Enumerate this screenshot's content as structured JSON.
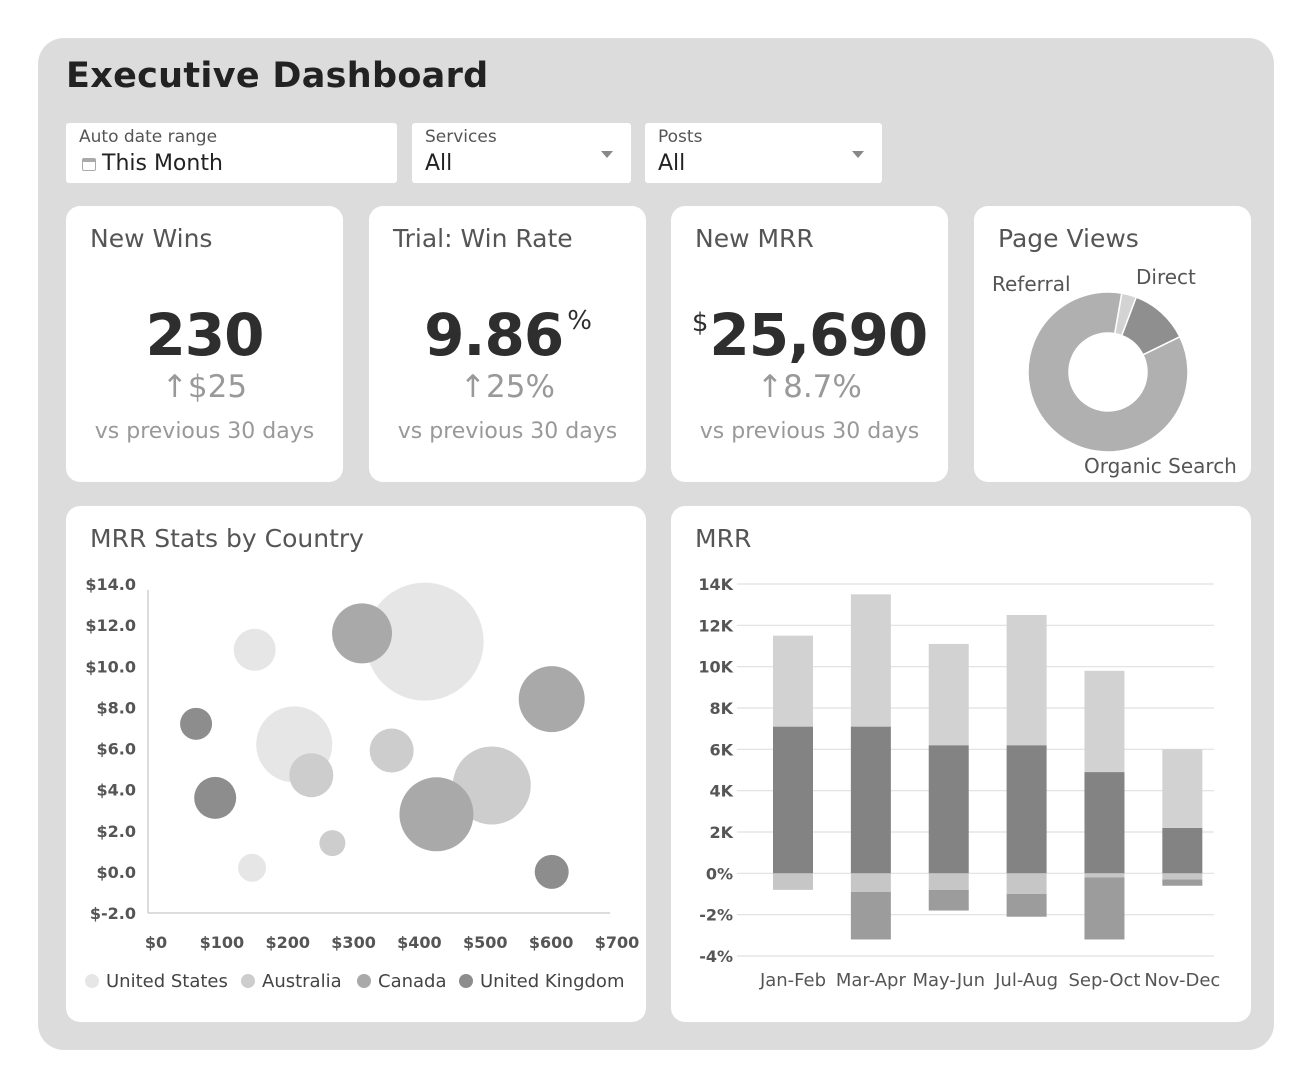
{
  "header": {
    "title": "Executive Dashboard"
  },
  "filters": {
    "date": {
      "label": "Auto date range",
      "value": "This Month"
    },
    "services": {
      "label": "Services",
      "value": "All"
    },
    "posts": {
      "label": "Posts",
      "value": "All"
    }
  },
  "kpis": {
    "new_wins": {
      "title": "New Wins",
      "value": "230",
      "delta": "↑$25",
      "compare": "vs previous 30 days"
    },
    "win_rate": {
      "title": "Trial: Win Rate",
      "value": "9.86",
      "unit": "%",
      "delta": "↑25%",
      "compare": "vs previous 30 days"
    },
    "new_mrr": {
      "title": "New MRR",
      "prefix": "$",
      "value": "25,690",
      "delta": "↑8.7%",
      "compare": "vs previous 30 days"
    }
  },
  "colors": {
    "panel": "#dcdcdc",
    "card": "#ffffff",
    "series_light": "#e4e4e4",
    "series_mid": "#c6c6c6",
    "series_dark": "#a6a6a6",
    "series_darkest": "#8c8c8c"
  },
  "chart_data": [
    {
      "type": "pie",
      "title": "Page Views",
      "donut": true,
      "slices": [
        {
          "label": "Referral",
          "value": 3,
          "color": "#d3d3d3"
        },
        {
          "label": "Direct",
          "value": 12,
          "color": "#8f8f8f"
        },
        {
          "label": "Organic Search",
          "value": 85,
          "color": "#b0b0b0"
        }
      ]
    },
    {
      "type": "scatter",
      "title": "MRR Stats by Country",
      "xlim": [
        0,
        700
      ],
      "ylim": [
        -2,
        14
      ],
      "xticks": [
        "$0",
        "$100",
        "$200",
        "$300",
        "$400",
        "$500",
        "$600",
        "$700"
      ],
      "yticks": [
        "$14.0",
        "$12.0",
        "$10.0",
        "$8.0",
        "$6.0",
        "$4.0",
        "$2.0",
        "$0.0",
        "$-2.0"
      ],
      "legend": "bottom",
      "series": [
        {
          "name": "United States",
          "color": "#e6e6e6",
          "points": [
            {
              "x": 162,
              "y": 10.8,
              "size": 21
            },
            {
              "x": 222,
              "y": 6.2,
              "size": 38
            },
            {
              "x": 420,
              "y": 11.2,
              "size": 59
            },
            {
              "x": 158,
              "y": 0.2,
              "size": 14
            }
          ]
        },
        {
          "name": "Australia",
          "color": "#cdcdcd",
          "points": [
            {
              "x": 248,
              "y": 4.7,
              "size": 22
            },
            {
              "x": 370,
              "y": 5.9,
              "size": 22
            },
            {
              "x": 522,
              "y": 4.2,
              "size": 39
            },
            {
              "x": 280,
              "y": 1.4,
              "size": 13
            }
          ]
        },
        {
          "name": "Canada",
          "color": "#a9a9a9",
          "points": [
            {
              "x": 325,
              "y": 11.6,
              "size": 30
            },
            {
              "x": 438,
              "y": 2.8,
              "size": 37
            },
            {
              "x": 613,
              "y": 8.4,
              "size": 33
            }
          ]
        },
        {
          "name": "United Kingdom",
          "color": "#8d8d8d",
          "points": [
            {
              "x": 73,
              "y": 7.2,
              "size": 16
            },
            {
              "x": 102,
              "y": 3.6,
              "size": 21
            },
            {
              "x": 613,
              "y": 0.0,
              "size": 17
            }
          ]
        }
      ]
    },
    {
      "type": "bar",
      "stacked": true,
      "title": "MRR",
      "categories": [
        "Jan-Feb",
        "Mar-Apr",
        "May-Jun",
        "Jul-Aug",
        "Sep-Oct",
        "Nov-Dec"
      ],
      "ylim": [
        -4,
        14
      ],
      "yticks": [
        "14K",
        "12K",
        "10K",
        "8K",
        "6K",
        "4K",
        "2K",
        "0%",
        "-2%",
        "-4%"
      ],
      "series": [
        {
          "color": "#838383",
          "values": [
            7.1,
            7.1,
            6.2,
            6.2,
            4.9,
            2.2
          ]
        },
        {
          "color": "#d2d2d2",
          "values": [
            4.4,
            6.4,
            4.9,
            6.3,
            4.9,
            3.8
          ]
        },
        {
          "color": "#c6c6c6",
          "values": [
            -0.8,
            -0.9,
            -0.8,
            -1.0,
            -0.2,
            -0.3
          ]
        },
        {
          "color": "#9c9c9c",
          "values": [
            0,
            -2.3,
            -1.0,
            -1.1,
            -3.0,
            -0.3
          ]
        }
      ]
    }
  ]
}
